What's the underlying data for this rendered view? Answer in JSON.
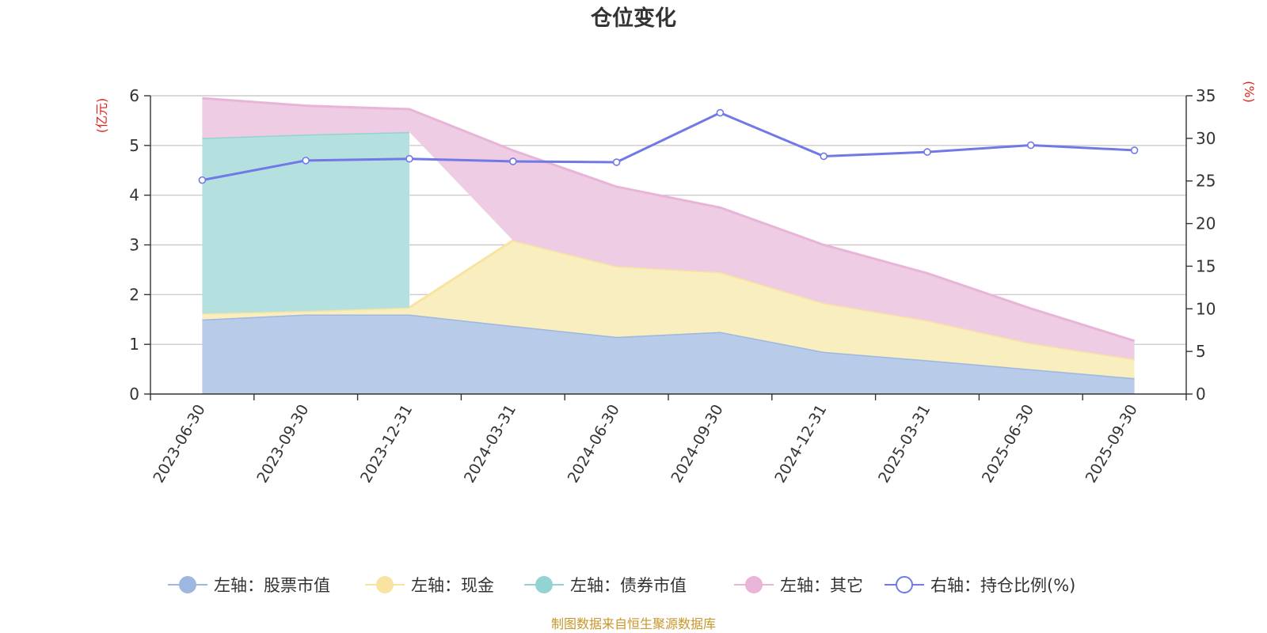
{
  "chart_data": {
    "type": "area",
    "title": "仓位变化",
    "categories": [
      "2023-06-30",
      "2023-09-30",
      "2023-12-31",
      "2024-03-31",
      "2024-06-30",
      "2024-09-30",
      "2024-12-31",
      "2025-03-31",
      "2025-06-30",
      "2025-09-30"
    ],
    "left_axis": {
      "label": "(亿元)",
      "min": 0,
      "max": 6,
      "ticks": [
        0,
        1,
        2,
        3,
        4,
        5,
        6
      ]
    },
    "right_axis": {
      "label": "(%)",
      "min": 0,
      "max": 35,
      "ticks": [
        0,
        5,
        10,
        15,
        20,
        25,
        30,
        35
      ]
    },
    "series": [
      {
        "name": "左轴：股票市值",
        "axis": "left",
        "type": "area",
        "color": "#9db7e0",
        "fill": "#b8cbe9",
        "values": [
          1.5,
          1.6,
          1.6,
          1.37,
          1.15,
          1.25,
          0.85,
          0.68,
          0.5,
          0.32
        ]
      },
      {
        "name": "左轴：现金",
        "axis": "left",
        "type": "area",
        "color": "#f8e3a0",
        "fill": "#f9eec0",
        "values": [
          0.12,
          0.07,
          0.14,
          1.72,
          1.42,
          1.2,
          0.98,
          0.8,
          0.52,
          0.38
        ]
      },
      {
        "name": "左轴：债券市值",
        "axis": "left",
        "type": "area",
        "color": "#93d3d3",
        "fill": "#b5e0e0",
        "values": [
          3.53,
          3.55,
          3.53,
          null,
          null,
          null,
          null,
          null,
          null,
          null
        ]
      },
      {
        "name": "左轴：其它",
        "axis": "left",
        "type": "area",
        "color": "#e8b4d8",
        "fill": "#eecce3",
        "values": [
          0.8,
          0.58,
          0.46,
          1.81,
          1.6,
          1.3,
          1.17,
          0.95,
          0.7,
          0.37
        ]
      },
      {
        "name": "右轴：持仓比例(%)",
        "axis": "right",
        "type": "line",
        "color": "#7179e6",
        "values": [
          25.1,
          27.4,
          27.6,
          27.3,
          27.2,
          33.0,
          27.9,
          28.4,
          29.2,
          28.6
        ]
      }
    ],
    "legend": "bottom-center",
    "grid": true
  },
  "source_text": "制图数据来自恒生聚源数据库"
}
